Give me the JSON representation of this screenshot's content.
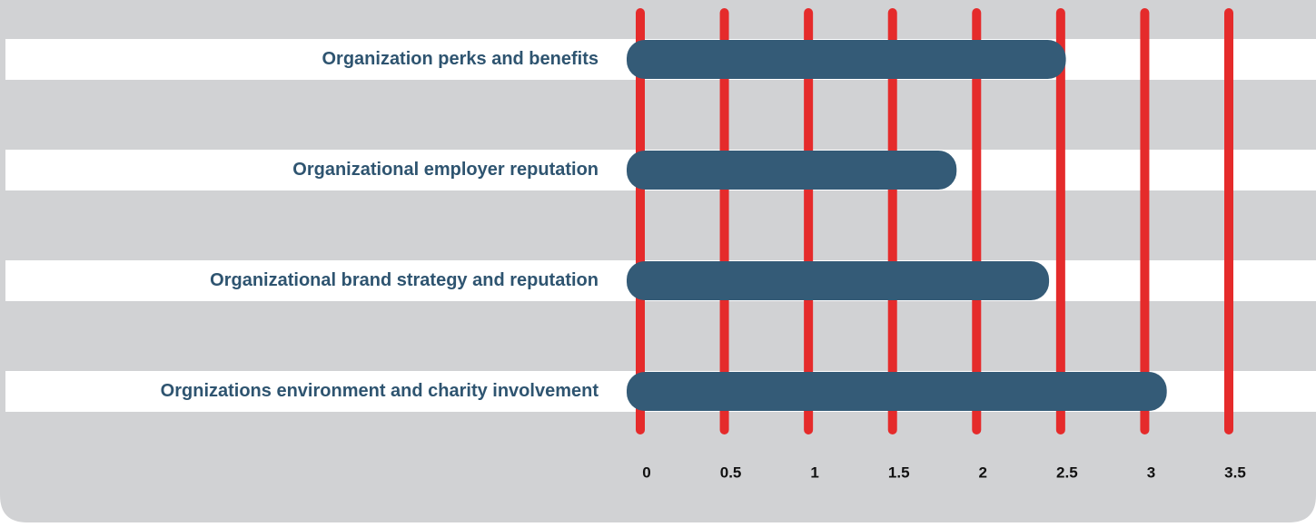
{
  "chart_data": {
    "type": "bar",
    "orientation": "horizontal",
    "categories": [
      "Organization perks and benefits",
      "Organizational employer reputation",
      "Organizational brand strategy and reputation",
      "Orgnizations environment and charity involvement"
    ],
    "values": [
      2.45,
      1.8,
      2.35,
      3.05
    ],
    "color": "#345b77",
    "grid": true,
    "grid_color": "#e52b2b",
    "xlim": [
      0,
      3.5
    ],
    "xticks": [
      0,
      0.5,
      1,
      1.5,
      2,
      2.5,
      3,
      3.5
    ]
  }
}
